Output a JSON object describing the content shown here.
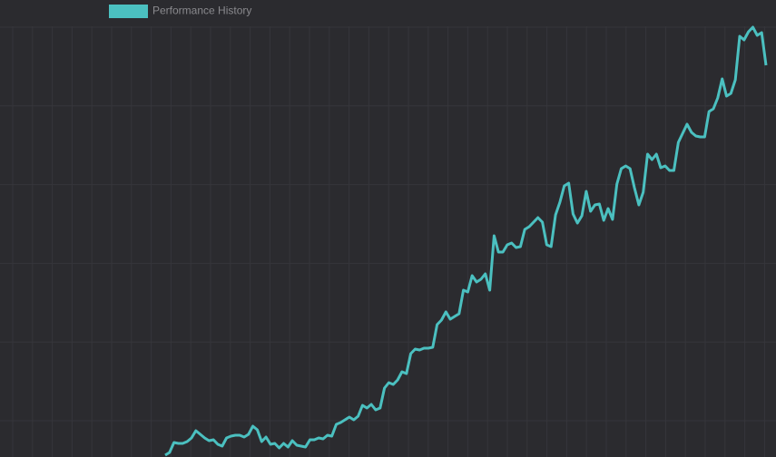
{
  "chart_data": {
    "type": "line",
    "series": [
      {
        "name": "Performance History",
        "color": "#4bc0c0",
        "values": [
          2,
          5,
          16,
          15,
          15,
          17,
          21,
          29,
          25,
          21,
          18,
          19,
          14,
          12,
          21,
          23,
          24,
          24,
          22,
          25,
          34,
          30,
          17,
          22,
          14,
          15,
          10,
          15,
          11,
          18,
          13,
          12,
          11,
          19,
          19,
          21,
          20,
          24,
          23,
          36,
          38,
          41,
          44,
          41,
          45,
          57,
          54,
          58,
          52,
          54,
          76,
          82,
          80,
          85,
          94,
          92,
          114,
          119,
          118,
          120,
          120,
          121,
          146,
          151,
          160,
          152,
          155,
          158,
          184,
          182,
          200,
          193,
          196,
          202,
          184,
          244,
          226,
          226,
          234,
          236,
          231,
          232,
          251,
          254,
          259,
          264,
          259,
          234,
          232,
          267,
          281,
          299,
          302,
          268,
          258,
          266,
          293,
          271,
          278,
          279,
          261,
          274,
          262,
          301,
          318,
          321,
          318,
          297,
          278,
          292,
          334,
          328,
          334,
          319,
          321,
          316,
          316,
          347,
          357,
          367,
          358,
          354,
          353,
          353,
          381,
          384,
          396,
          417,
          398,
          401,
          416,
          464,
          460,
          469,
          474,
          465,
          468,
          432
        ]
      }
    ],
    "ylim": [
      0,
      475
    ],
    "grid": true,
    "legend": "top-left"
  }
}
